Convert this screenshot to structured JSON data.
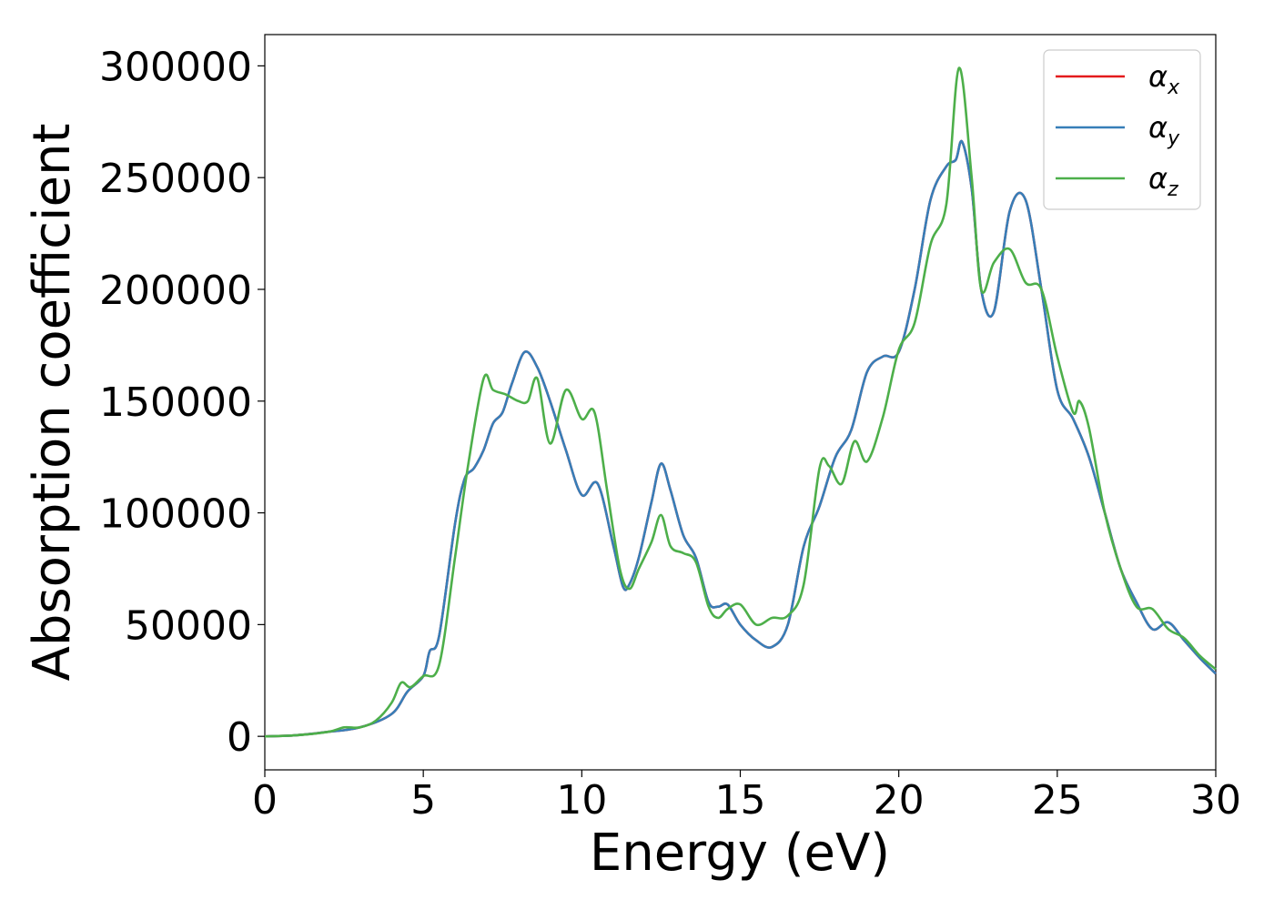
{
  "chart_data": {
    "type": "line",
    "title": "",
    "xlabel": "Energy (eV)",
    "ylabel": "Absorption coefficient",
    "xlim": [
      0,
      30
    ],
    "ylim": [
      -15000,
      314000
    ],
    "xticks": [
      0,
      5,
      10,
      15,
      20,
      25,
      30
    ],
    "yticks": [
      0,
      50000,
      100000,
      150000,
      200000,
      250000,
      300000
    ],
    "grid": false,
    "legend_position": "top-right",
    "series": [
      {
        "name": "α_x",
        "symbol": "α",
        "subscript": "x",
        "color": "#e41a1c",
        "x": [
          0,
          1,
          2,
          3,
          4,
          4.5,
          5,
          5.2,
          5.5,
          6,
          6.3,
          6.6,
          6.9,
          7.2,
          7.5,
          7.8,
          8.2,
          8.6,
          9,
          9.5,
          10,
          10.5,
          11,
          11.3,
          11.5,
          11.8,
          12.2,
          12.5,
          12.8,
          13.2,
          13.6,
          14,
          14.3,
          14.6,
          15,
          15.5,
          16,
          16.5,
          17,
          17.5,
          18,
          18.5,
          19,
          19.5,
          20,
          20.5,
          21,
          21.5,
          21.8,
          22,
          22.3,
          22.6,
          23,
          23.5,
          24,
          24.5,
          25,
          25.5,
          26,
          26.5,
          27,
          27.5,
          28,
          28.5,
          29,
          29.5,
          30
        ],
        "values": [
          0,
          500,
          2000,
          4000,
          10000,
          20000,
          27000,
          38000,
          45000,
          95000,
          115000,
          120000,
          128000,
          140000,
          145000,
          158000,
          172000,
          165000,
          150000,
          128000,
          108000,
          113000,
          85000,
          67000,
          68000,
          80000,
          105000,
          122000,
          110000,
          90000,
          80000,
          60000,
          58000,
          59000,
          50000,
          43000,
          40000,
          50000,
          85000,
          103000,
          125000,
          137000,
          163000,
          170000,
          172000,
          200000,
          240000,
          255000,
          258000,
          266000,
          245000,
          200000,
          190000,
          235000,
          240000,
          200000,
          155000,
          142000,
          125000,
          100000,
          75000,
          60000,
          48000,
          51000,
          43000,
          35000,
          28000
        ]
      },
      {
        "name": "α_y",
        "symbol": "α",
        "subscript": "y",
        "color": "#377eb8",
        "x": [
          0,
          1,
          2,
          3,
          4,
          4.5,
          5,
          5.2,
          5.5,
          6,
          6.3,
          6.6,
          6.9,
          7.2,
          7.5,
          7.8,
          8.2,
          8.6,
          9,
          9.5,
          10,
          10.5,
          11,
          11.3,
          11.5,
          11.8,
          12.2,
          12.5,
          12.8,
          13.2,
          13.6,
          14,
          14.3,
          14.6,
          15,
          15.5,
          16,
          16.5,
          17,
          17.5,
          18,
          18.5,
          19,
          19.5,
          20,
          20.5,
          21,
          21.5,
          21.8,
          22,
          22.3,
          22.6,
          23,
          23.5,
          24,
          24.5,
          25,
          25.5,
          26,
          26.5,
          27,
          27.5,
          28,
          28.5,
          29,
          29.5,
          30
        ],
        "values": [
          0,
          500,
          2000,
          4000,
          10000,
          20000,
          27000,
          38000,
          45000,
          95000,
          115000,
          120000,
          128000,
          140000,
          145000,
          158000,
          172000,
          165000,
          150000,
          128000,
          108000,
          113000,
          85000,
          67000,
          68000,
          80000,
          105000,
          122000,
          110000,
          90000,
          80000,
          60000,
          58000,
          59000,
          50000,
          43000,
          40000,
          50000,
          85000,
          103000,
          125000,
          137000,
          163000,
          170000,
          172000,
          200000,
          240000,
          255000,
          258000,
          266000,
          245000,
          200000,
          190000,
          235000,
          240000,
          200000,
          155000,
          142000,
          125000,
          100000,
          75000,
          60000,
          48000,
          51000,
          43000,
          35000,
          28000
        ]
      },
      {
        "name": "α_z",
        "symbol": "α",
        "subscript": "z",
        "color": "#4daf4a",
        "x": [
          0,
          1,
          2,
          2.5,
          3,
          3.5,
          4,
          4.3,
          4.6,
          5,
          5.5,
          6,
          6.4,
          6.9,
          7.2,
          7.6,
          8,
          8.3,
          8.6,
          9,
          9.5,
          10,
          10.4,
          10.8,
          11.2,
          11.5,
          11.8,
          12.2,
          12.5,
          12.8,
          13.2,
          13.6,
          14,
          14.3,
          14.6,
          15,
          15.5,
          16,
          16.5,
          17,
          17.5,
          17.8,
          18.2,
          18.6,
          19,
          19.5,
          20,
          20.5,
          21,
          21.5,
          21.9,
          22.3,
          22.6,
          23,
          23.5,
          24,
          24.5,
          25,
          25.5,
          25.7,
          26,
          26.5,
          27,
          27.5,
          28,
          28.5,
          29,
          29.5,
          30
        ],
        "values": [
          0,
          500,
          2000,
          4000,
          4000,
          7000,
          15000,
          24000,
          22000,
          27000,
          32000,
          80000,
          120000,
          160000,
          155000,
          153000,
          150000,
          150000,
          160000,
          131000,
          155000,
          142000,
          145000,
          110000,
          75000,
          66000,
          75000,
          87000,
          99000,
          85000,
          82000,
          78000,
          58000,
          53000,
          57000,
          59000,
          50000,
          53000,
          54000,
          68000,
          120000,
          121000,
          113000,
          132000,
          123000,
          143000,
          173000,
          185000,
          220000,
          238000,
          299000,
          250000,
          200000,
          212000,
          218000,
          203000,
          200000,
          170000,
          145000,
          150000,
          138000,
          100000,
          75000,
          58000,
          57000,
          48000,
          44000,
          36000,
          30000
        ]
      }
    ]
  }
}
